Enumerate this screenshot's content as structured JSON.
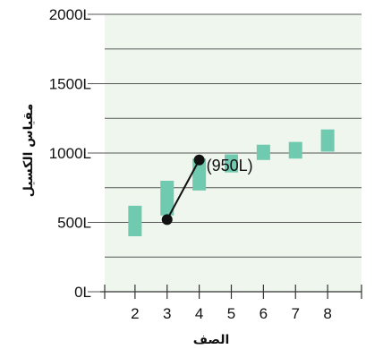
{
  "chart_data": {
    "type": "bar",
    "title": "",
    "xlabel": "الصف",
    "ylabel": "مقياس الكسيل",
    "ylim": [
      0,
      2000
    ],
    "y_ticks": [
      0,
      500,
      1000,
      1500,
      2000
    ],
    "y_tick_labels": [
      "0L",
      "500L",
      "1000L",
      "1500L",
      "2000L"
    ],
    "y_gridlines": [
      0,
      250,
      500,
      750,
      1000,
      1250,
      1500,
      1750,
      2000
    ],
    "x_ticks": [
      2,
      3,
      4,
      5,
      6,
      7,
      8
    ],
    "x_tick_labels": [
      "2",
      "3",
      "4",
      "5",
      "6",
      "7",
      "8"
    ],
    "xlim": [
      1,
      9
    ],
    "grid": true,
    "range_bars": {
      "categories": [
        2,
        3,
        4,
        5,
        6,
        7,
        8
      ],
      "low": [
        400,
        550,
        730,
        860,
        950,
        960,
        1010
      ],
      "high": [
        620,
        800,
        960,
        990,
        1060,
        1080,
        1170
      ],
      "color": "#6fcab0"
    },
    "line_series": {
      "x": [
        3,
        4
      ],
      "y": [
        520,
        950
      ],
      "color": "#111111"
    },
    "annotation": {
      "text": "(950L)",
      "x": 4,
      "y": 950
    },
    "colors": {
      "plot_background": "#eef6ee",
      "gridline": "#555555",
      "bar": "#6fcab0"
    }
  }
}
